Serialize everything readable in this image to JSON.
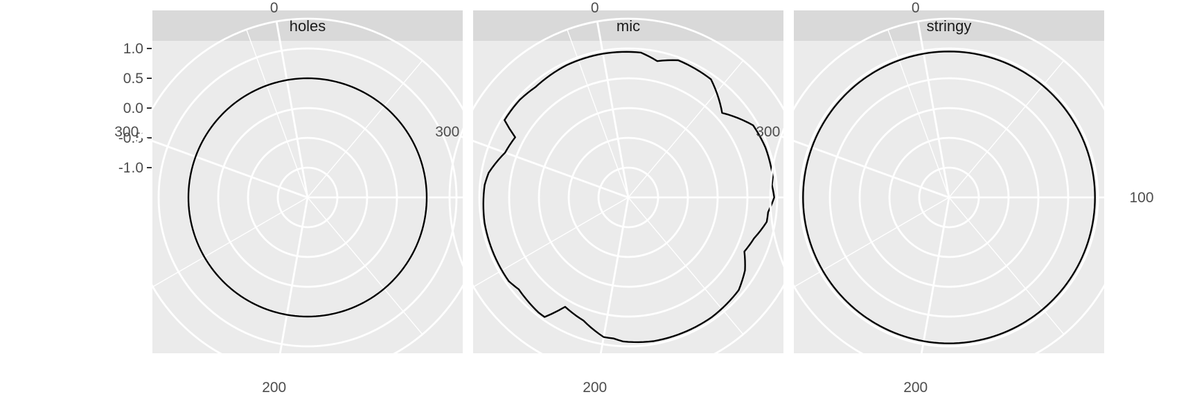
{
  "chart_data": {
    "type": "line",
    "coord": "polar",
    "facet_by": "panel",
    "theta_labels": [
      "0",
      "100",
      "200",
      "300"
    ],
    "theta_range": [
      0,
      360
    ],
    "r_tick_labels": [
      "1.0",
      "0.5",
      "0.0",
      "-0.5",
      "-1.0"
    ],
    "r_ticks": [
      1.0,
      0.5,
      0.0,
      -0.5,
      -1.0
    ],
    "r_range": [
      -1.5,
      1.5
    ],
    "grid": true,
    "panels": [
      {
        "name": "holes",
        "series": [
          {
            "theta": [
              0,
              360
            ],
            "r": [
              0.5,
              0.5
            ]
          }
        ]
      },
      {
        "name": "mic",
        "series": [
          {
            "theta": [
              0,
              15,
              22,
              30,
              45,
              58,
              70,
              80,
              92,
              95,
              100,
              106,
              110,
              118,
              125,
              132,
              140,
              155,
              170,
              180,
              192,
              196,
              200,
              210,
              220,
              225,
              228,
              235,
              240,
              245,
              255,
              270,
              285,
              290,
              300,
              308,
              312,
              322,
              330,
              345,
              360
            ],
            "r": [
              0.95,
              0.94,
              0.84,
              0.95,
              0.92,
              0.62,
              0.92,
              0.95,
              0.95,
              0.92,
              0.95,
              0.86,
              0.86,
              0.72,
              0.65,
              0.81,
              0.92,
              0.95,
              0.95,
              0.95,
              0.92,
              0.88,
              0.88,
              0.7,
              0.62,
              0.95,
              0.95,
              0.92,
              0.9,
              0.95,
              0.95,
              0.95,
              0.92,
              0.88,
              0.7,
              0.65,
              0.95,
              0.95,
              0.92,
              0.95,
              0.95
            ]
          }
        ]
      },
      {
        "name": "stringy",
        "series": [
          {
            "theta": [
              0,
              360
            ],
            "r": [
              0.95,
              0.95
            ]
          }
        ]
      }
    ]
  }
}
